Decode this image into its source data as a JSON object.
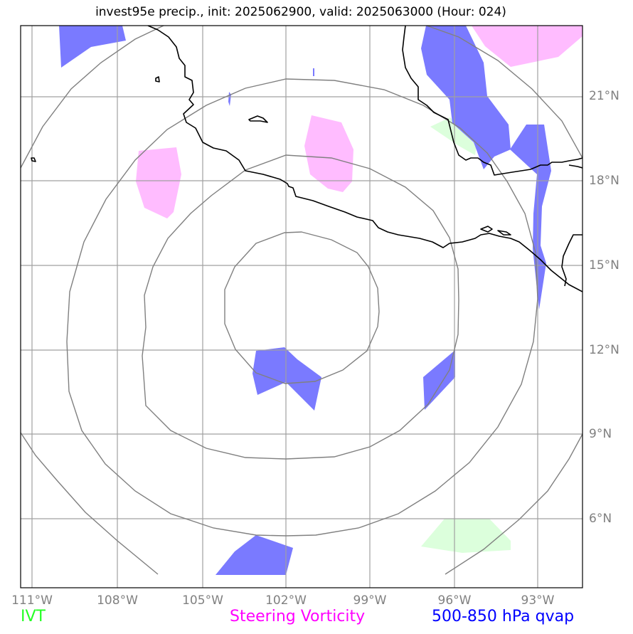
{
  "title": "invest95e precip., init: 2025062900, valid: 2025063000 (Hour: 024)",
  "lat_labels": [
    "21°N",
    "18°N",
    "15°N",
    "12°N",
    "9°N",
    "6°N"
  ],
  "lon_labels": [
    "111°W",
    "108°W",
    "105°W",
    "102°W",
    "99°W",
    "96°W",
    "93°W"
  ],
  "legend": {
    "ivt": {
      "label": "IVT",
      "color": "#22ff22"
    },
    "vorticity": {
      "label": "Steering Vorticity",
      "color": "#ff00ff"
    },
    "qvap": {
      "label": "500-850 hPa qvap",
      "color": "#0000ff"
    }
  },
  "colors": {
    "qvap_fill": "#7a7aff",
    "vort_fill": "#ffbcff",
    "ivt_fill": "#dcffdc",
    "grid": "#a0a0a0",
    "range_rings": "#808080",
    "coastline": "#000000"
  }
}
